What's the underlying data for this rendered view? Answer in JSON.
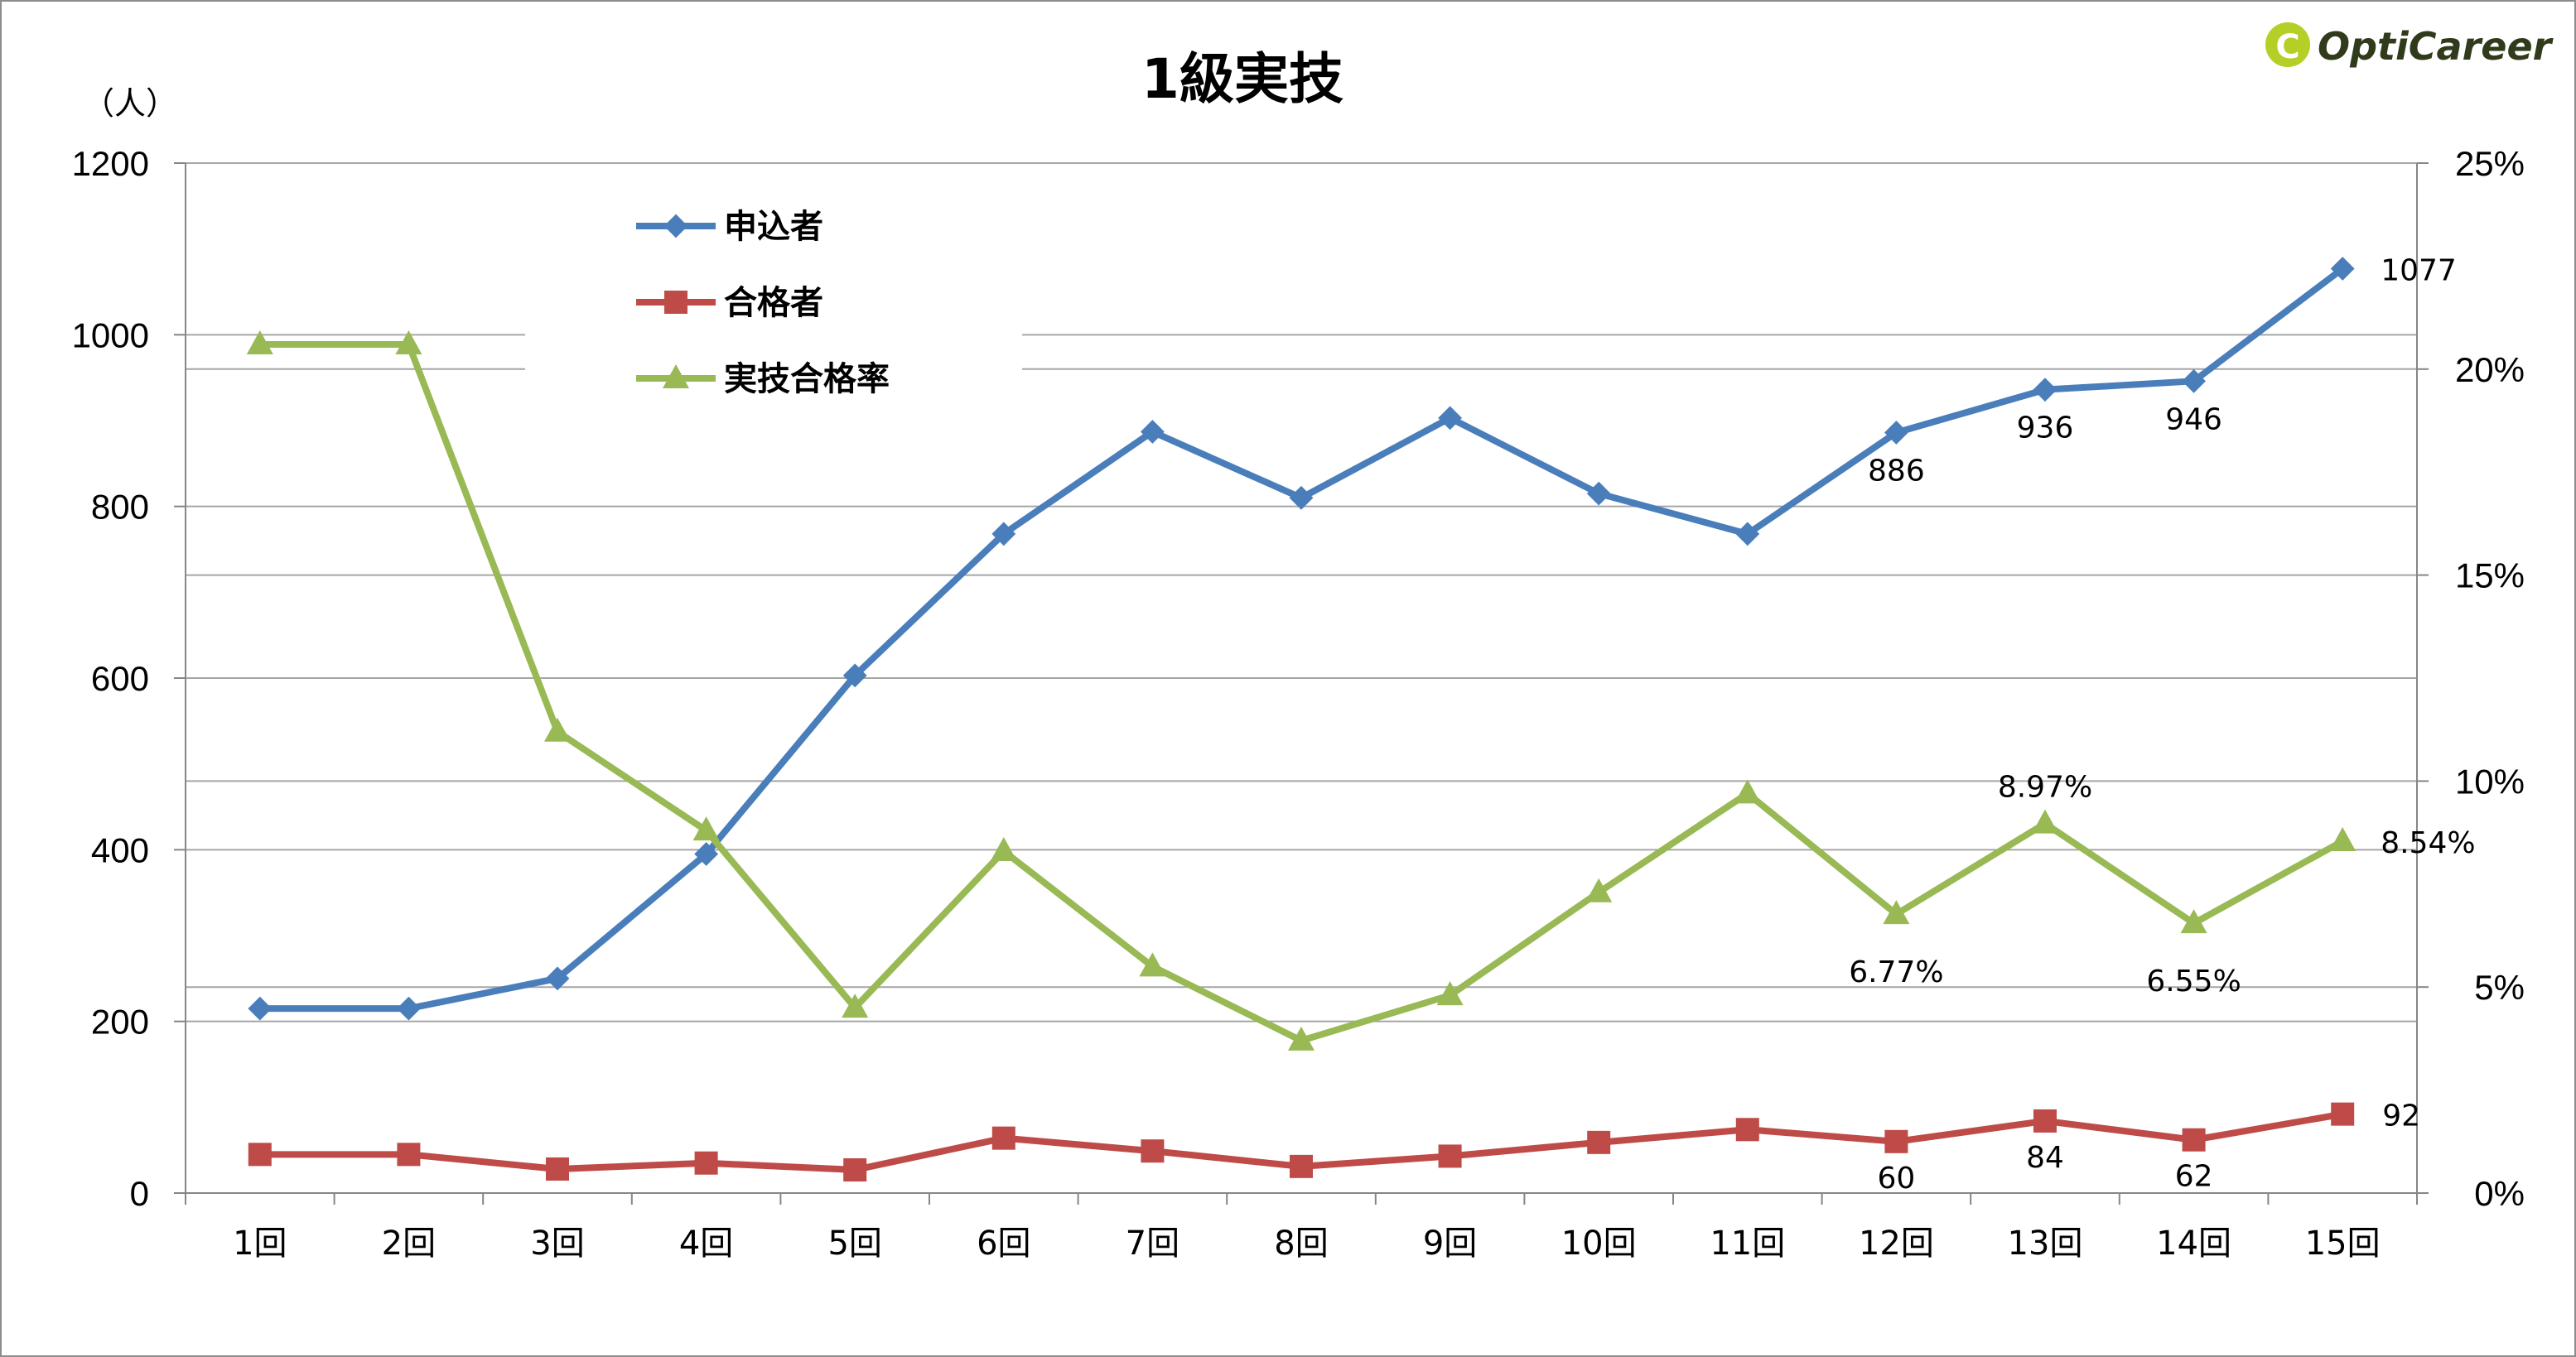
{
  "chart_data": {
    "type": "line",
    "title": "1級実技",
    "y_unit": "（人）",
    "categories": [
      "1回",
      "2回",
      "3回",
      "4回",
      "5回",
      "6回",
      "7回",
      "8回",
      "9回",
      "10回",
      "11回",
      "12回",
      "13回",
      "14回",
      "15回"
    ],
    "ylim": [
      0,
      1200
    ],
    "yticks": [
      "0",
      "200",
      "400",
      "600",
      "800",
      "1000",
      "1200"
    ],
    "y2lim": [
      0,
      25
    ],
    "y2ticks": [
      "0%",
      "5%",
      "10%",
      "15%",
      "20%",
      "25%"
    ],
    "grid": true,
    "legend_position": "top-left",
    "series": [
      {
        "name": "申込者",
        "axis": "left",
        "color": "#4a7ebb",
        "marker": "diamond",
        "values": [
          215,
          215,
          250,
          395,
          603,
          768,
          887,
          810,
          903,
          815,
          768,
          886,
          936,
          946,
          1077
        ],
        "labels": [
          null,
          null,
          null,
          null,
          null,
          null,
          null,
          null,
          null,
          null,
          null,
          "886",
          "936",
          "946",
          "1077"
        ]
      },
      {
        "name": "合格者",
        "axis": "left",
        "color": "#be4b48",
        "marker": "square",
        "values": [
          45,
          45,
          28,
          35,
          27,
          64,
          49,
          31,
          43,
          59,
          74,
          60,
          84,
          62,
          92
        ],
        "labels": [
          null,
          null,
          null,
          null,
          null,
          null,
          null,
          null,
          null,
          null,
          null,
          "60",
          "84",
          "62",
          "92"
        ]
      },
      {
        "name": "実技合格率",
        "axis": "right",
        "color": "#98b954",
        "marker": "triangle",
        "values": [
          20.6,
          20.6,
          11.2,
          8.8,
          4.5,
          8.3,
          5.5,
          3.7,
          4.8,
          7.3,
          9.7,
          6.77,
          8.97,
          6.55,
          8.54
        ],
        "labels": [
          null,
          null,
          null,
          null,
          null,
          null,
          null,
          null,
          null,
          null,
          null,
          "6.77%",
          "8.97%",
          "6.55%",
          "8.54%"
        ]
      }
    ]
  },
  "logo": {
    "text": "OptiCareer",
    "badge": "C"
  }
}
